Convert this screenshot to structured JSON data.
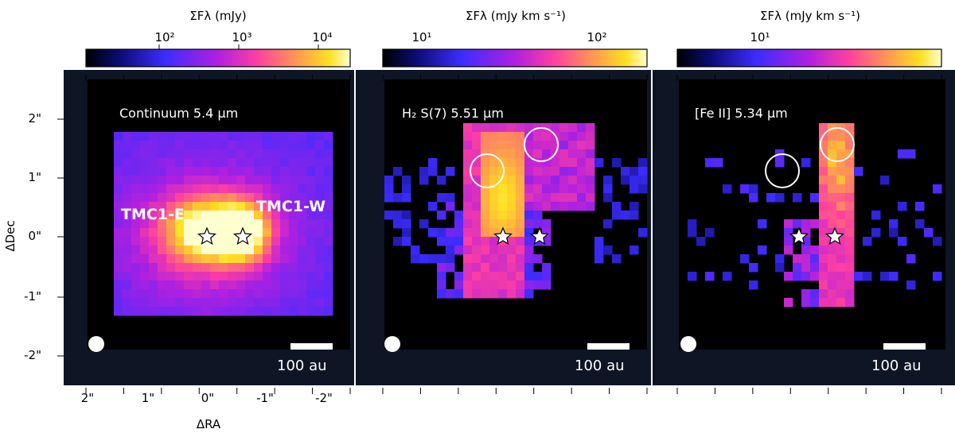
{
  "figure": {
    "axes": {
      "ylabel": "ΔDec",
      "xlabel": "ΔRA",
      "yticks": [
        "2\"",
        "1\"",
        "0\"",
        "-1\"",
        "-2\""
      ],
      "xticks": [
        "2\"",
        "1\"",
        "0\"",
        "-1\"",
        "-2\""
      ]
    },
    "panels": [
      {
        "title": "Continuum 5.4 μm",
        "colorbar_label": "ΣFλ (mJy)",
        "colorbar_ticks": [
          "10²",
          "10³",
          "10⁴"
        ],
        "source_labels": [
          "TMC1-E",
          "TMC1-W"
        ],
        "scalebar_label": "100 au"
      },
      {
        "title": "H₂ S(7) 5.51 μm",
        "colorbar_label": "ΣFλ (mJy km s⁻¹)",
        "colorbar_ticks": [
          "10¹",
          "10²"
        ],
        "scalebar_label": "100 au"
      },
      {
        "title": "[Fe II] 5.34 μm",
        "colorbar_label": "ΣFλ (mJy km s⁻¹)",
        "colorbar_ticks": [
          "10¹"
        ],
        "scalebar_label": "100 au"
      }
    ],
    "colors": {
      "background": "#0e1524",
      "map_zero": "#000000",
      "colormap": [
        "#0d0887",
        "#6a00a8",
        "#b12a90",
        "#e16462",
        "#fca636",
        "#f0f921"
      ]
    }
  }
}
